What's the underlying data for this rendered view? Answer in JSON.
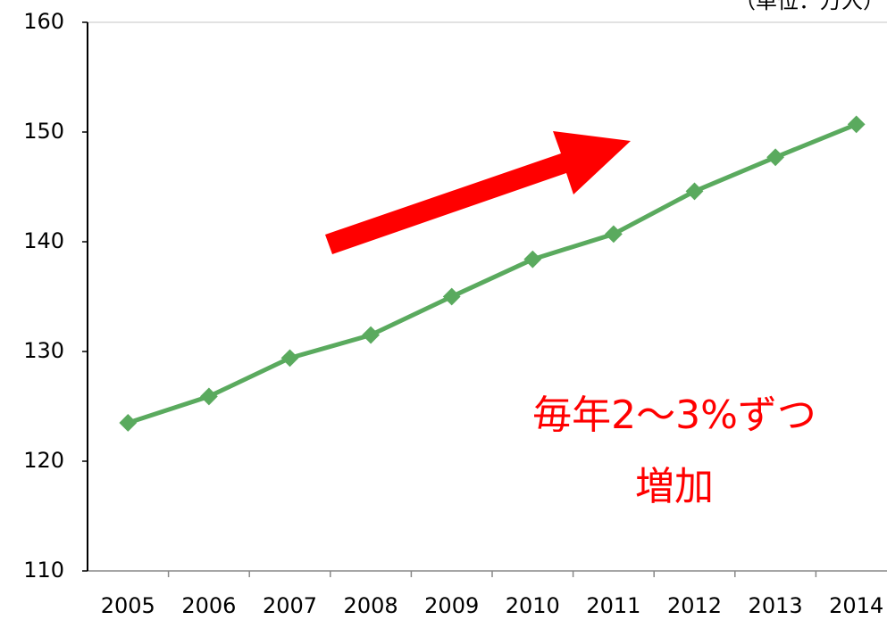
{
  "chart_data": {
    "type": "line",
    "unit_label": "（単位：万人）",
    "annotation": [
      "毎年2〜3%ずつ",
      "増加"
    ],
    "categories": [
      "2005",
      "2006",
      "2007",
      "2008",
      "2009",
      "2010",
      "2011",
      "2012",
      "2013",
      "2014"
    ],
    "series": [
      {
        "color": "#5aaa5e",
        "values": [
          123.5,
          125.9,
          129.4,
          131.5,
          135.0,
          138.4,
          140.7,
          144.6,
          147.7,
          150.7
        ]
      }
    ],
    "ylim": [
      110,
      160
    ],
    "yticks": [
      110,
      120,
      130,
      140,
      150,
      160
    ],
    "grid": false
  }
}
